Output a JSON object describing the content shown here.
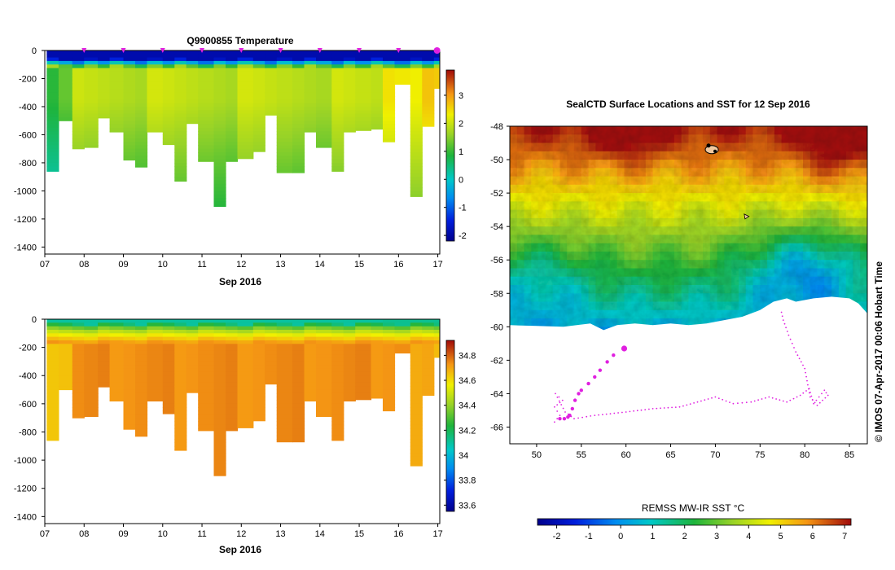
{
  "chart_data": [
    {
      "type": "heatmap",
      "title": "Q9900855  Temperature",
      "xlabel": "Sep 2016",
      "ylabel": "",
      "x_ticks": [
        "07",
        "08",
        "09",
        "10",
        "11",
        "12",
        "13",
        "14",
        "15",
        "16",
        "17"
      ],
      "y_ticks": [
        "0",
        "-200",
        "-400",
        "-600",
        "-800",
        "-1000",
        "-1200",
        "-1400"
      ],
      "xlim": [
        7,
        17.05
      ],
      "ylim": [
        -1450,
        0
      ],
      "colorbar": {
        "ticks": [
          "3",
          "2",
          "1",
          "0",
          "-1",
          "-2"
        ],
        "range": [
          -2.2,
          3.9
        ]
      },
      "profile_days": [
        7.05,
        7.35,
        7.7,
        8.0,
        8.35,
        8.65,
        9.0,
        9.3,
        9.6,
        10.0,
        10.3,
        10.6,
        10.9,
        11.3,
        11.6,
        11.9,
        12.3,
        12.6,
        12.9,
        13.3,
        13.6,
        13.9,
        14.3,
        14.6,
        14.9,
        15.3,
        15.6,
        15.9,
        16.3,
        16.6,
        16.9
      ],
      "profile_max_depth": [
        860,
        500,
        700,
        690,
        480,
        580,
        780,
        830,
        580,
        670,
        930,
        520,
        790,
        1110,
        790,
        770,
        720,
        460,
        870,
        870,
        580,
        690,
        860,
        580,
        570,
        560,
        650,
        240,
        1040,
        540,
        270
      ],
      "surface_marker_days": [
        8.0,
        9.0,
        10.0,
        11.0,
        12.0,
        13.0,
        14.0,
        15.0,
        16.0,
        16.98
      ],
      "layer_values": {
        "surface": -1.9,
        "transition": 0.3,
        "interior": 1.9,
        "deep": 1.2
      }
    },
    {
      "type": "heatmap",
      "title": "",
      "xlabel": "Sep 2016",
      "ylabel": "",
      "x_ticks": [
        "07",
        "08",
        "09",
        "10",
        "11",
        "12",
        "13",
        "14",
        "15",
        "16",
        "17"
      ],
      "y_ticks": [
        "0",
        "-200",
        "-400",
        "-600",
        "-800",
        "-1000",
        "-1200",
        "-1400"
      ],
      "xlim": [
        7,
        17.05
      ],
      "ylim": [
        -1450,
        0
      ],
      "colorbar": {
        "ticks": [
          "34.8",
          "34.6",
          "34.4",
          "34.2",
          "34",
          "33.8",
          "33.6"
        ],
        "range": [
          33.55,
          34.92
        ]
      },
      "layer_values": {
        "surface": 34.1,
        "transition": 34.5,
        "interior": 34.74
      }
    },
    {
      "type": "heatmap",
      "title": "SealCTD Surface Locations and SST for 12 Sep 2016",
      "xlabel": "",
      "ylabel": "",
      "x_ticks": [
        "50",
        "55",
        "60",
        "65",
        "70",
        "75",
        "80",
        "85"
      ],
      "y_ticks": [
        "-48",
        "-50",
        "-52",
        "-54",
        "-56",
        "-58",
        "-60",
        "-62",
        "-64",
        "-66"
      ],
      "xlim": [
        47,
        87
      ],
      "ylim": [
        -67,
        -48
      ],
      "colorbar_label": "REMSS MW-IR SST °C",
      "colorbar": {
        "ticks": [
          "-2",
          "-1",
          "0",
          "1",
          "2",
          "3",
          "4",
          "5",
          "6",
          "7"
        ],
        "range": [
          -2.6,
          7.2
        ]
      },
      "track_recent": [
        [
          59.8,
          -61.3
        ],
        [
          58.6,
          -61.7
        ],
        [
          57.9,
          -62.1
        ],
        [
          57.1,
          -62.6
        ],
        [
          56.5,
          -63.0
        ],
        [
          55.8,
          -63.4
        ],
        [
          55.0,
          -63.8
        ],
        [
          54.7,
          -64.0
        ],
        [
          54.3,
          -64.4
        ],
        [
          54.0,
          -64.9
        ],
        [
          53.7,
          -65.3
        ],
        [
          53.5,
          -65.4
        ],
        [
          53.1,
          -65.5
        ],
        [
          52.6,
          -65.5
        ]
      ],
      "track_older": [
        [
          52.0,
          -65.7
        ],
        [
          52.6,
          -65.3
        ],
        [
          52.0,
          -64.8
        ],
        [
          52.9,
          -64.4
        ],
        [
          52.1,
          -64.0
        ],
        [
          53.2,
          -65.1
        ],
        [
          54.2,
          -65.5
        ],
        [
          56.5,
          -65.3
        ],
        [
          60.0,
          -65.1
        ],
        [
          63.0,
          -64.9
        ],
        [
          66.0,
          -64.8
        ],
        [
          68.0,
          -64.5
        ],
        [
          70.0,
          -64.2
        ],
        [
          72.0,
          -64.6
        ],
        [
          74.0,
          -64.5
        ],
        [
          76.0,
          -64.2
        ],
        [
          78.0,
          -64.5
        ],
        [
          79.5,
          -64.1
        ],
        [
          80.5,
          -63.7
        ],
        [
          81.0,
          -64.6
        ],
        [
          81.6,
          -64.2
        ],
        [
          82.2,
          -63.8
        ],
        [
          82.6,
          -64.1
        ],
        [
          81.4,
          -64.7
        ],
        [
          80.6,
          -64.2
        ],
        [
          80.0,
          -62.5
        ],
        [
          79.0,
          -61.5
        ],
        [
          78.2,
          -60.5
        ],
        [
          77.6,
          -59.6
        ],
        [
          77.3,
          -58.9
        ]
      ],
      "seal_marker": [
        69.6,
        -49.4
      ],
      "small_marker": [
        73.5,
        -53.4
      ],
      "ice_edge": [
        [
          47,
          -59.9
        ],
        [
          50,
          -59.95
        ],
        [
          53,
          -60.0
        ],
        [
          54.5,
          -59.9
        ],
        [
          56,
          -59.8
        ],
        [
          57.5,
          -60.2
        ],
        [
          59,
          -59.9
        ],
        [
          61,
          -59.8
        ],
        [
          63,
          -59.9
        ],
        [
          65,
          -59.8
        ],
        [
          67,
          -59.9
        ],
        [
          69,
          -59.8
        ],
        [
          71,
          -59.6
        ],
        [
          73,
          -59.4
        ],
        [
          75,
          -59.0
        ],
        [
          76.5,
          -58.5
        ],
        [
          78,
          -58.3
        ],
        [
          79,
          -58.5
        ],
        [
          81,
          -58.3
        ],
        [
          83,
          -58.2
        ],
        [
          85,
          -58.3
        ],
        [
          86,
          -58.6
        ],
        [
          87,
          -59.2
        ]
      ]
    }
  ],
  "footer": {
    "credit": "© IMOS 07-Apr-2017 00:06 Hobart Time"
  }
}
